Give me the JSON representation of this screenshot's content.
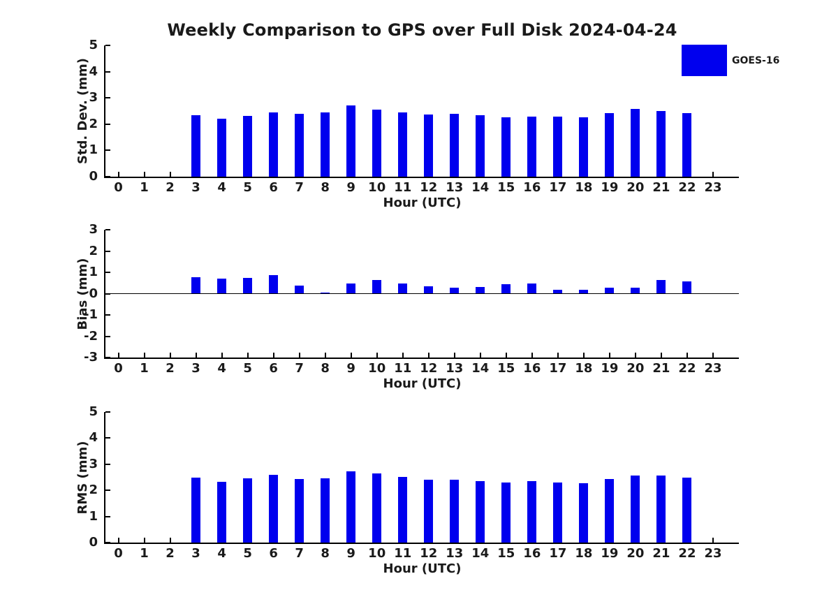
{
  "title": "Weekly Comparison to GPS over Full Disk 2024-04-24",
  "legend": {
    "label": "GOES-16",
    "color": "#0000ee"
  },
  "colors": {
    "bar": "#0000ee",
    "axis": "#000000",
    "text": "#1a1a1a",
    "background": "#ffffff"
  },
  "chart_data": [
    {
      "type": "bar",
      "name": "std-dev",
      "ylabel": "Std. Dev. (mm)",
      "xlabel": "Hour (UTC)",
      "xlim": [
        -0.5,
        24
      ],
      "ylim": [
        0,
        5
      ],
      "yticks": [
        0,
        1,
        2,
        3,
        4,
        5
      ],
      "grid": false,
      "categories": [
        0,
        1,
        2,
        3,
        4,
        5,
        6,
        7,
        8,
        9,
        10,
        11,
        12,
        13,
        14,
        15,
        16,
        17,
        18,
        19,
        20,
        21,
        22,
        23
      ],
      "series": [
        {
          "name": "GOES-16",
          "values": [
            null,
            null,
            null,
            2.35,
            2.22,
            2.32,
            2.45,
            2.4,
            2.45,
            2.7,
            2.56,
            2.45,
            2.38,
            2.4,
            2.33,
            2.26,
            2.29,
            2.29,
            2.27,
            2.41,
            2.57,
            2.51,
            2.43,
            null
          ]
        }
      ]
    },
    {
      "type": "bar",
      "name": "bias",
      "ylabel": "Bias (mm)",
      "xlabel": "Hour (UTC)",
      "xlim": [
        -0.5,
        24
      ],
      "ylim": [
        -3,
        3
      ],
      "yticks": [
        -3,
        -2,
        -1,
        0,
        1,
        2,
        3
      ],
      "zero_line": true,
      "grid": false,
      "categories": [
        0,
        1,
        2,
        3,
        4,
        5,
        6,
        7,
        8,
        9,
        10,
        11,
        12,
        13,
        14,
        15,
        16,
        17,
        18,
        19,
        20,
        21,
        22,
        23
      ],
      "series": [
        {
          "name": "GOES-16",
          "values": [
            null,
            null,
            null,
            0.76,
            0.72,
            0.75,
            0.88,
            0.37,
            0.05,
            0.46,
            0.64,
            0.46,
            0.36,
            0.28,
            0.31,
            0.44,
            0.46,
            0.18,
            0.19,
            0.29,
            0.27,
            0.63,
            0.59,
            null
          ]
        }
      ]
    },
    {
      "type": "bar",
      "name": "rms",
      "ylabel": "RMS (mm)",
      "xlabel": "Hour (UTC)",
      "xlim": [
        -0.5,
        24
      ],
      "ylim": [
        0,
        5
      ],
      "yticks": [
        0,
        1,
        2,
        3,
        4,
        5
      ],
      "grid": false,
      "categories": [
        0,
        1,
        2,
        3,
        4,
        5,
        6,
        7,
        8,
        9,
        10,
        11,
        12,
        13,
        14,
        15,
        16,
        17,
        18,
        19,
        20,
        21,
        22,
        23
      ],
      "series": [
        {
          "name": "GOES-16",
          "values": [
            null,
            null,
            null,
            2.48,
            2.33,
            2.45,
            2.6,
            2.43,
            2.45,
            2.72,
            2.64,
            2.51,
            2.4,
            2.4,
            2.34,
            2.3,
            2.34,
            2.29,
            2.27,
            2.42,
            2.57,
            2.58,
            2.5,
            null
          ]
        }
      ]
    }
  ]
}
